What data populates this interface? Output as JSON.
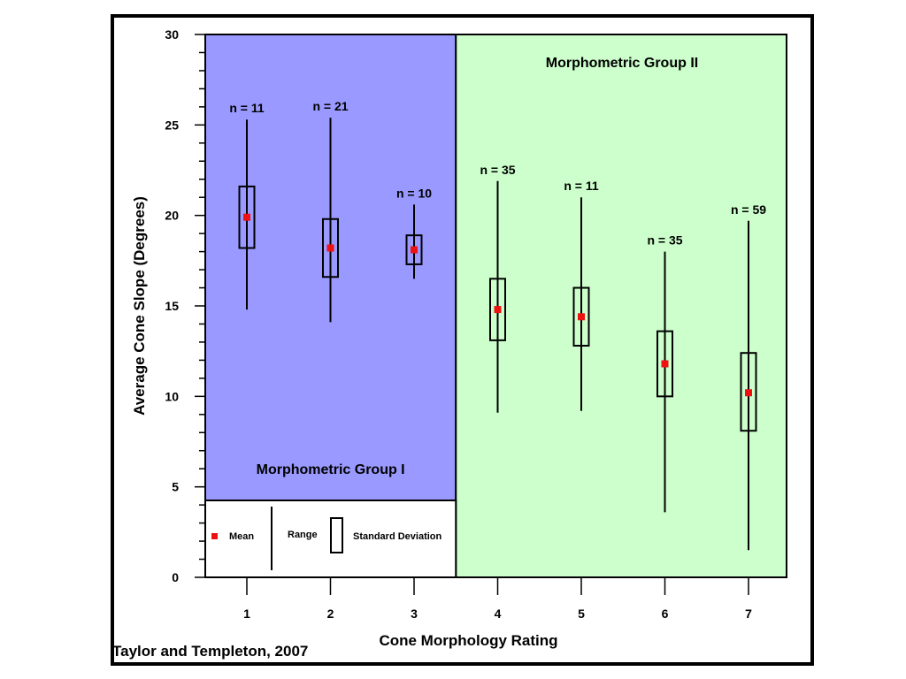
{
  "chart_data": {
    "type": "box",
    "xlabel": "Cone Morphology Rating",
    "ylabel": "Average Cone Slope (Degrees)",
    "x_ticks": [
      "1",
      "2",
      "3",
      "4",
      "5",
      "6",
      "7"
    ],
    "y_ticks": [
      "0",
      "5",
      "10",
      "15",
      "20",
      "25",
      "30"
    ],
    "ylim": [
      0,
      30
    ],
    "grid": false,
    "groups": [
      {
        "label": "Morphometric Group I",
        "ratings": [
          1,
          2,
          3
        ],
        "color": "#9999ff"
      },
      {
        "label": "Morphometric Group II",
        "ratings": [
          4,
          5,
          6,
          7
        ],
        "color": "#ccffcc"
      }
    ],
    "boxes": [
      {
        "x": 1,
        "n_label": "n = 11",
        "mean": 19.9,
        "sd_low": 18.2,
        "sd_high": 21.6,
        "min": 14.8,
        "max": 25.3
      },
      {
        "x": 2,
        "n_label": "n = 21",
        "mean": 18.2,
        "sd_low": 16.6,
        "sd_high": 19.8,
        "min": 14.1,
        "max": 25.4
      },
      {
        "x": 3,
        "n_label": "n = 10",
        "mean": 18.1,
        "sd_low": 17.3,
        "sd_high": 18.9,
        "min": 16.5,
        "max": 20.6
      },
      {
        "x": 4,
        "n_label": "n = 35",
        "mean": 14.8,
        "sd_low": 13.1,
        "sd_high": 16.5,
        "min": 9.1,
        "max": 21.9
      },
      {
        "x": 5,
        "n_label": "n = 11",
        "mean": 14.4,
        "sd_low": 12.8,
        "sd_high": 16.0,
        "min": 9.2,
        "max": 21.0
      },
      {
        "x": 6,
        "n_label": "n = 35",
        "mean": 11.8,
        "sd_low": 10.0,
        "sd_high": 13.6,
        "min": 3.6,
        "max": 18.0
      },
      {
        "x": 7,
        "n_label": "n = 59",
        "mean": 10.2,
        "sd_low": 8.1,
        "sd_high": 12.4,
        "min": 1.5,
        "max": 19.7
      }
    ],
    "legend": {
      "mean_label": "Mean",
      "range_label": "Range",
      "sd_label": "Standard Deviation",
      "placement": "bottom-left"
    },
    "mean_color": "#ee1111"
  },
  "citation": "Taylor and Templeton, 2007"
}
